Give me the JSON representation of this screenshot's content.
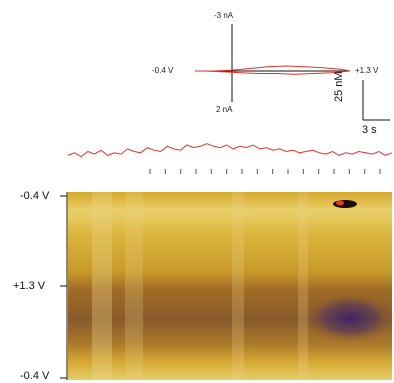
{
  "chart_data": [
    {
      "type": "line",
      "title": "",
      "x_axis": {
        "left_label": "-0.4 V",
        "right_label": "+1.3 V"
      },
      "y_axis": {
        "top_label": "-3 nA",
        "bottom_label": "2 nA"
      },
      "series": [
        {
          "values_x_V": [
            -0.4,
            -0.2,
            0.0,
            0.2,
            0.4,
            0.6,
            0.8,
            1.0,
            1.2,
            1.3
          ],
          "values_y_nA": [
            0.0,
            0.0,
            -0.1,
            -0.3,
            -0.5,
            -0.6,
            -0.5,
            -0.4,
            -0.2,
            0.0
          ]
        },
        {
          "values_x_V": [
            1.3,
            1.1,
            0.9,
            0.7,
            0.5,
            0.3,
            0.1,
            -0.1,
            -0.3,
            -0.4
          ],
          "values_y_nA": [
            0.0,
            0.2,
            0.3,
            0.4,
            0.3,
            0.3,
            0.2,
            0.1,
            0.0,
            0.0
          ]
        }
      ],
      "color": "#e0332a"
    },
    {
      "type": "line",
      "title": "",
      "scale_bar": {
        "y_label": "25 nM",
        "x_label": "3 s"
      },
      "values_nM": [
        2,
        4,
        1,
        5,
        3,
        6,
        2,
        4,
        3,
        7,
        5,
        4,
        8,
        6,
        5,
        9,
        7,
        6,
        10,
        8,
        9,
        11,
        9,
        8,
        10,
        7,
        9,
        8,
        10,
        7,
        8,
        6,
        7,
        5,
        6,
        4,
        5,
        6,
        4,
        3,
        5,
        2,
        4,
        3,
        5,
        4,
        3,
        5,
        2,
        4
      ],
      "stim_ticks": 16,
      "color": "#e0332a"
    },
    {
      "type": "heatmap",
      "y_tick_labels": [
        "-0.4 V",
        "+1.3 V",
        "-0.4 V"
      ],
      "colormap": [
        "#3a1f6a",
        "#7a4e3a",
        "#b7821e",
        "#d9ad2c",
        "#efe08a"
      ]
    }
  ]
}
